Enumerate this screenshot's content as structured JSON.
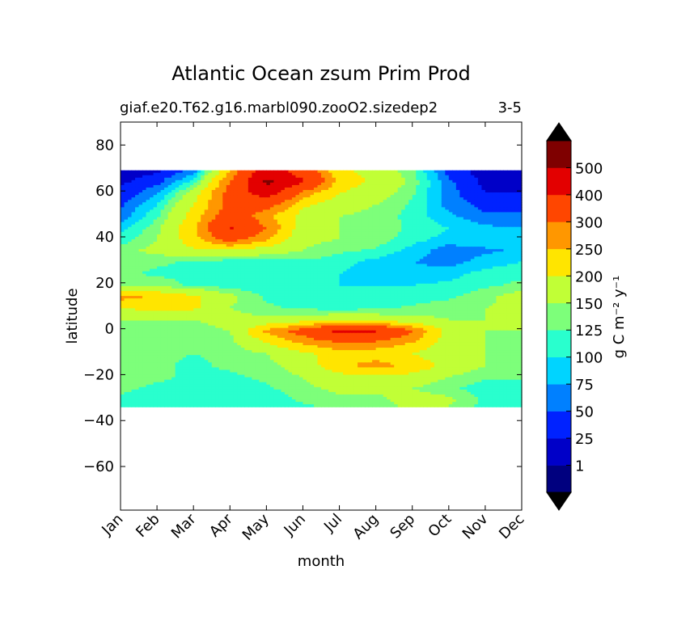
{
  "chart_data": {
    "type": "heatmap",
    "subtype": "filled-contour",
    "title": "Atlantic Ocean zsum Prim Prod",
    "subtitle_left": "giaf.e20.T62.g16.marbl090.zooO2.sizedep2",
    "subtitle_right": "3-5",
    "xlabel": "month",
    "ylabel": "latitude",
    "x_ticks": [
      "Jan",
      "Feb",
      "Mar",
      "Apr",
      "May",
      "Jun",
      "Jul",
      "Aug",
      "Sep",
      "Oct",
      "Nov",
      "Dec"
    ],
    "y_ticks": [
      "80",
      "60",
      "40",
      "20",
      "0",
      "−20",
      "−40",
      "−60"
    ],
    "y_tick_values": [
      80,
      60,
      40,
      20,
      0,
      -20,
      -40,
      -60
    ],
    "ylim": [
      -79,
      90
    ],
    "xlim": [
      1,
      12
    ],
    "data_lat_range": [
      -34,
      69
    ],
    "colorbar": {
      "label": "g C m⁻² y⁻¹",
      "tick_labels": [
        "1",
        "25",
        "50",
        "75",
        "100",
        "125",
        "150",
        "200",
        "250",
        "300",
        "400",
        "500"
      ],
      "levels": [
        0,
        1,
        25,
        50,
        75,
        100,
        125,
        150,
        200,
        250,
        300,
        400,
        500,
        600
      ],
      "colors": [
        "#00007f",
        "#0000c8",
        "#0022ff",
        "#0080ff",
        "#00d4ff",
        "#29ffce",
        "#7dff7a",
        "#c1ff36",
        "#ffe500",
        "#ff9700",
        "#ff4600",
        "#e30000",
        "#7f0000"
      ],
      "under_color": "#000000",
      "over_color": "#000000",
      "extend": "both"
    },
    "lat_grid": [
      69,
      64,
      59,
      54,
      49,
      44,
      39,
      34,
      29,
      24,
      19,
      14,
      9,
      4,
      -1,
      -6,
      -11,
      -16,
      -21,
      -26,
      -31,
      -34
    ],
    "months": [
      1,
      2,
      3,
      4,
      5,
      6,
      7,
      8,
      9,
      10,
      11,
      12
    ],
    "values": [
      [
        15,
        20,
        55,
        250,
        460,
        350,
        210,
        180,
        130,
        40,
        12,
        15
      ],
      [
        20,
        40,
        110,
        300,
        520,
        410,
        230,
        190,
        140,
        55,
        18,
        18
      ],
      [
        30,
        70,
        170,
        330,
        450,
        280,
        200,
        170,
        130,
        60,
        25,
        25
      ],
      [
        45,
        100,
        200,
        320,
        340,
        210,
        170,
        150,
        120,
        65,
        40,
        40
      ],
      [
        60,
        120,
        220,
        350,
        260,
        180,
        150,
        140,
        115,
        80,
        55,
        55
      ],
      [
        90,
        140,
        240,
        410,
        300,
        170,
        150,
        140,
        120,
        100,
        80,
        75
      ],
      [
        110,
        150,
        230,
        330,
        260,
        160,
        150,
        140,
        110,
        90,
        90,
        90
      ],
      [
        140,
        160,
        190,
        190,
        170,
        150,
        130,
        120,
        90,
        60,
        70,
        80
      ],
      [
        140,
        130,
        120,
        110,
        115,
        120,
        110,
        90,
        75,
        65,
        85,
        100
      ],
      [
        130,
        120,
        115,
        110,
        115,
        110,
        100,
        90,
        85,
        90,
        110,
        120
      ],
      [
        150,
        140,
        120,
        110,
        110,
        105,
        100,
        100,
        100,
        105,
        120,
        130
      ],
      [
        270,
        240,
        210,
        160,
        120,
        110,
        105,
        105,
        110,
        120,
        140,
        170
      ],
      [
        200,
        220,
        210,
        150,
        130,
        120,
        115,
        120,
        130,
        140,
        150,
        160
      ],
      [
        150,
        150,
        150,
        160,
        160,
        170,
        180,
        175,
        160,
        150,
        150,
        160
      ],
      [
        140,
        140,
        140,
        150,
        260,
        330,
        420,
        410,
        300,
        180,
        150,
        150
      ],
      [
        130,
        130,
        130,
        140,
        200,
        260,
        300,
        290,
        250,
        170,
        150,
        140
      ],
      [
        130,
        130,
        125,
        130,
        150,
        190,
        220,
        220,
        200,
        160,
        150,
        140
      ],
      [
        130,
        130,
        120,
        130,
        140,
        170,
        240,
        270,
        240,
        180,
        150,
        150
      ],
      [
        140,
        130,
        120,
        120,
        130,
        150,
        180,
        190,
        180,
        150,
        130,
        130
      ],
      [
        130,
        120,
        110,
        110,
        120,
        140,
        160,
        160,
        150,
        130,
        110,
        110
      ],
      [
        120,
        110,
        100,
        100,
        110,
        130,
        140,
        140,
        170,
        160,
        120,
        120
      ],
      [
        120,
        110,
        100,
        100,
        100,
        120,
        130,
        130,
        160,
        150,
        110,
        110
      ]
    ]
  }
}
